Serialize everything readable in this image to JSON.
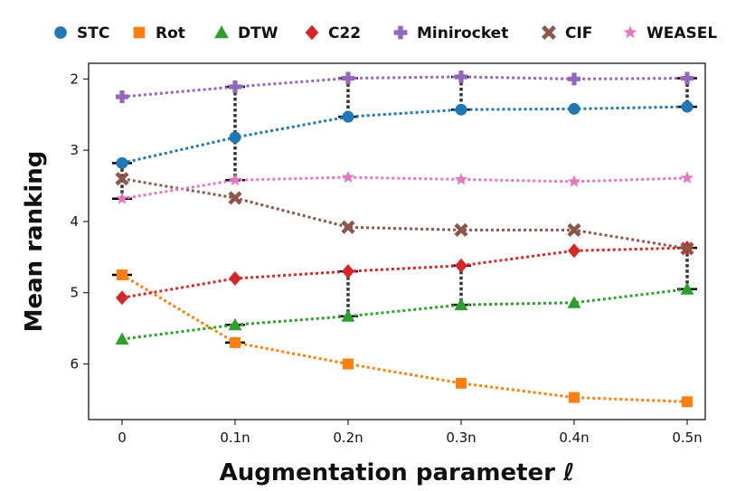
{
  "chart_data": {
    "type": "line",
    "title": "",
    "xlabel": "Augmentation parameter ℓ",
    "ylabel": "Mean ranking",
    "categories": [
      "0",
      "0.1n",
      "0.2n",
      "0.3n",
      "0.4n",
      "0.5n"
    ],
    "yticks": [
      "2",
      "3",
      "4",
      "5",
      "6"
    ],
    "ylim": [
      6.78,
      1.78
    ],
    "y_inverted": true,
    "grid": false,
    "legend_position": "top",
    "series": [
      {
        "name": "STC",
        "color": "#1f77b4",
        "marker": "circle",
        "values": [
          3.18,
          2.82,
          2.53,
          2.43,
          2.42,
          2.39
        ]
      },
      {
        "name": "Rot",
        "color": "#ff7f0e",
        "marker": "square",
        "values": [
          4.75,
          5.7,
          6.0,
          6.27,
          6.47,
          6.53
        ]
      },
      {
        "name": "DTW",
        "color": "#2ca02c",
        "marker": "triangle",
        "values": [
          5.65,
          5.45,
          5.33,
          5.17,
          5.14,
          4.95
        ]
      },
      {
        "name": "C22",
        "color": "#d62728",
        "marker": "diamond",
        "values": [
          5.07,
          4.8,
          4.7,
          4.62,
          4.41,
          4.37
        ]
      },
      {
        "name": "Minirocket",
        "color": "#9467bd",
        "marker": "plus",
        "values": [
          2.25,
          2.11,
          1.99,
          1.97,
          2.0,
          1.99
        ]
      },
      {
        "name": "CIF",
        "color": "#8c564b",
        "marker": "x",
        "values": [
          3.4,
          3.67,
          4.08,
          4.12,
          4.12,
          4.38
        ]
      },
      {
        "name": "WEASEL",
        "color": "#e377c2",
        "marker": "star",
        "values": [
          3.68,
          3.42,
          3.38,
          3.41,
          3.44,
          3.39
        ]
      }
    ],
    "ranges": {
      "color": "#333333",
      "segments": [
        {
          "x": "0",
          "min": 3.18,
          "max": 3.68
        },
        {
          "x": "0.1n",
          "min": 2.11,
          "max": 3.42
        },
        {
          "x": "0.2n",
          "min": 1.99,
          "max": 2.53
        },
        {
          "x": "0.2n",
          "min": 4.7,
          "max": 5.33
        },
        {
          "x": "0.3n",
          "min": 1.97,
          "max": 2.43
        },
        {
          "x": "0.3n",
          "min": 4.62,
          "max": 5.17
        },
        {
          "x": "0.5n",
          "min": 1.99,
          "max": 2.39
        },
        {
          "x": "0.5n",
          "min": 4.37,
          "max": 4.95
        }
      ],
      "ticks": [
        {
          "x": "0",
          "y": 4.75
        },
        {
          "x": "0.1n",
          "y": 5.45
        },
        {
          "x": "0.1n",
          "y": 5.7
        }
      ]
    }
  }
}
